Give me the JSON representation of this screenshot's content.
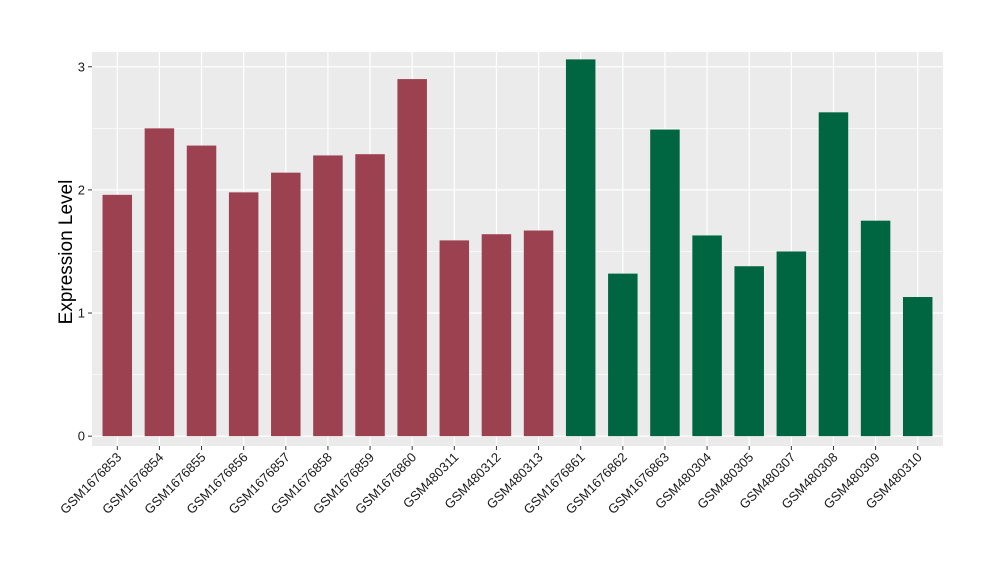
{
  "chart_data": {
    "type": "bar",
    "title": "",
    "xlabel": "",
    "ylabel": "Expression Level",
    "ylim": [
      -0.08,
      3.12
    ],
    "yticks": [
      0,
      1,
      2,
      3
    ],
    "grid": true,
    "legend": "none",
    "colors": {
      "group1": "#9b4150",
      "group2": "#006641",
      "panel": "#ebebeb",
      "grid": "#ffffff"
    },
    "categories": [
      "GSM1676853",
      "GSM1676854",
      "GSM1676855",
      "GSM1676856",
      "GSM1676857",
      "GSM1676858",
      "GSM1676859",
      "GSM1676860",
      "GSM480311",
      "GSM480312",
      "GSM480313",
      "GSM1676861",
      "GSM1676862",
      "GSM1676863",
      "GSM480304",
      "GSM480305",
      "GSM480307",
      "GSM480308",
      "GSM480309",
      "GSM480310"
    ],
    "values": [
      1.96,
      2.5,
      2.36,
      1.98,
      2.14,
      2.28,
      2.29,
      2.9,
      1.59,
      1.64,
      1.67,
      3.06,
      1.32,
      2.49,
      1.63,
      1.38,
      1.5,
      2.63,
      1.75,
      1.13
    ],
    "groups": [
      1,
      1,
      1,
      1,
      1,
      1,
      1,
      1,
      1,
      1,
      1,
      2,
      2,
      2,
      2,
      2,
      2,
      2,
      2,
      2
    ]
  }
}
